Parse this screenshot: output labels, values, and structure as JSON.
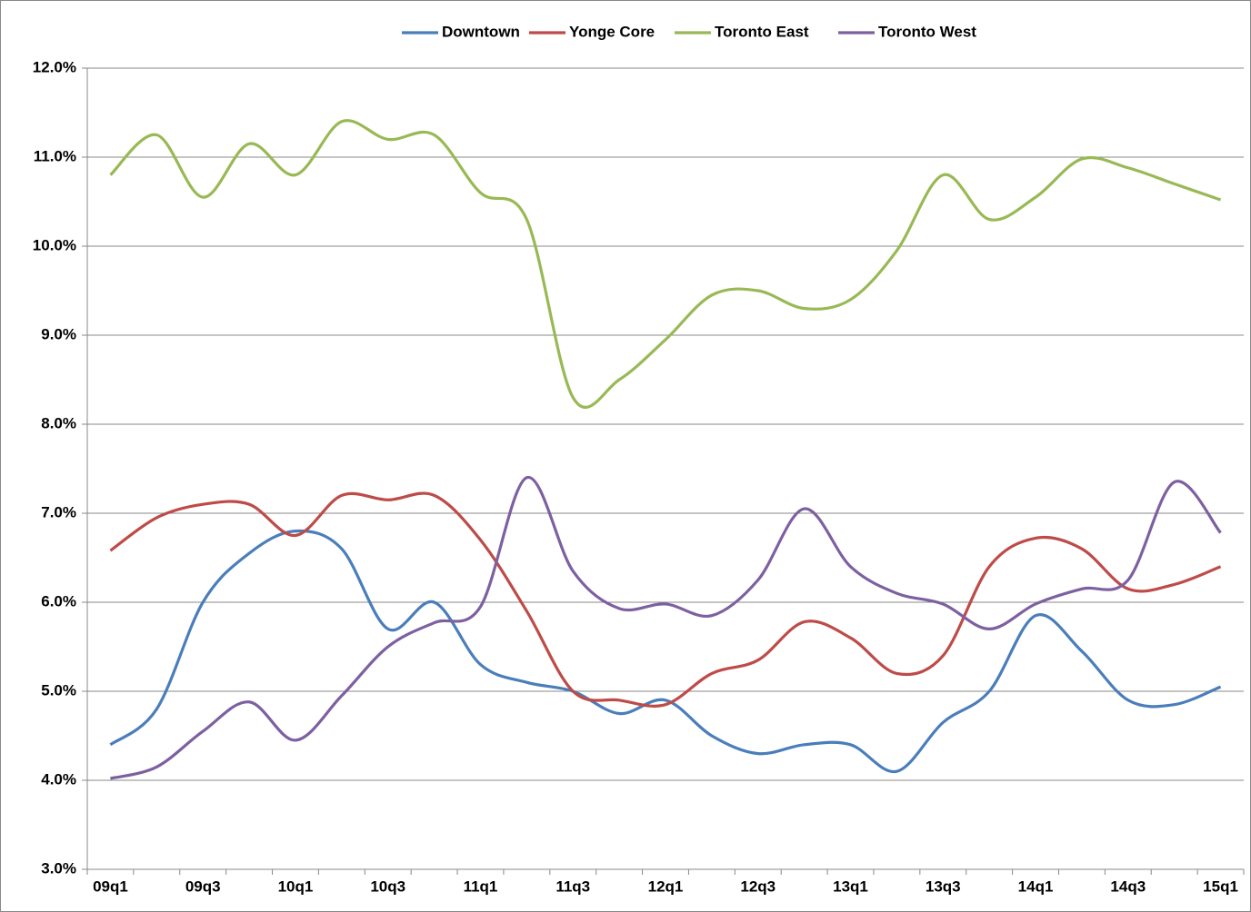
{
  "chart_data": {
    "type": "line",
    "categories": [
      "09q1",
      null,
      "09q3",
      null,
      "10q1",
      null,
      "10q3",
      null,
      "11q1",
      null,
      "11q3",
      null,
      "12q1",
      null,
      "12q3",
      null,
      "13q1",
      null,
      "13q3",
      null,
      "14q1",
      null,
      "14q3",
      null,
      "15q1"
    ],
    "series": [
      {
        "name": "Downtown",
        "color": "#4a7ebb",
        "values": [
          4.4,
          4.8,
          6.0,
          6.55,
          6.8,
          6.6,
          5.7,
          6.0,
          5.3,
          5.1,
          5.0,
          4.75,
          4.9,
          4.5,
          4.3,
          4.4,
          4.4,
          4.1,
          4.65,
          5.0,
          5.85,
          5.45,
          4.9,
          4.85,
          5.05
        ]
      },
      {
        "name": "Yonge Core",
        "color": "#be4b48",
        "values": [
          6.58,
          6.95,
          7.1,
          7.1,
          6.75,
          7.2,
          7.15,
          7.2,
          6.7,
          5.9,
          5.0,
          4.9,
          4.85,
          5.2,
          5.35,
          5.78,
          5.6,
          5.2,
          5.4,
          6.4,
          6.72,
          6.6,
          6.15,
          6.2,
          6.4
        ]
      },
      {
        "name": "Toronto East",
        "color": "#98b954",
        "values": [
          10.8,
          11.25,
          10.55,
          11.15,
          10.8,
          11.4,
          11.2,
          11.25,
          10.6,
          10.3,
          8.3,
          8.5,
          8.95,
          9.45,
          9.5,
          9.3,
          9.4,
          9.95,
          10.8,
          10.3,
          10.55,
          10.98,
          10.88,
          10.7,
          10.52
        ]
      },
      {
        "name": "Toronto West",
        "color": "#7d60a0",
        "values": [
          4.02,
          4.15,
          4.55,
          4.88,
          4.45,
          4.95,
          5.5,
          5.77,
          5.95,
          7.4,
          6.35,
          5.93,
          5.98,
          5.85,
          6.25,
          7.05,
          6.4,
          6.1,
          5.98,
          5.7,
          5.98,
          6.15,
          6.25,
          7.35,
          6.78
        ]
      }
    ],
    "ylim": [
      3,
      12
    ],
    "yticks": [
      {
        "value": 3,
        "label": "3.0%"
      },
      {
        "value": 4,
        "label": "4.0%"
      },
      {
        "value": 5,
        "label": "5.0%"
      },
      {
        "value": 6,
        "label": "6.0%"
      },
      {
        "value": 7,
        "label": "7.0%"
      },
      {
        "value": 8,
        "label": "8.0%"
      },
      {
        "value": 9,
        "label": "9.0%"
      },
      {
        "value": 10,
        "label": "10.0%"
      },
      {
        "value": 11,
        "label": "11.0%"
      },
      {
        "value": 12,
        "label": "12.0%"
      }
    ],
    "grid": true,
    "legend": "top",
    "smooth": true
  }
}
